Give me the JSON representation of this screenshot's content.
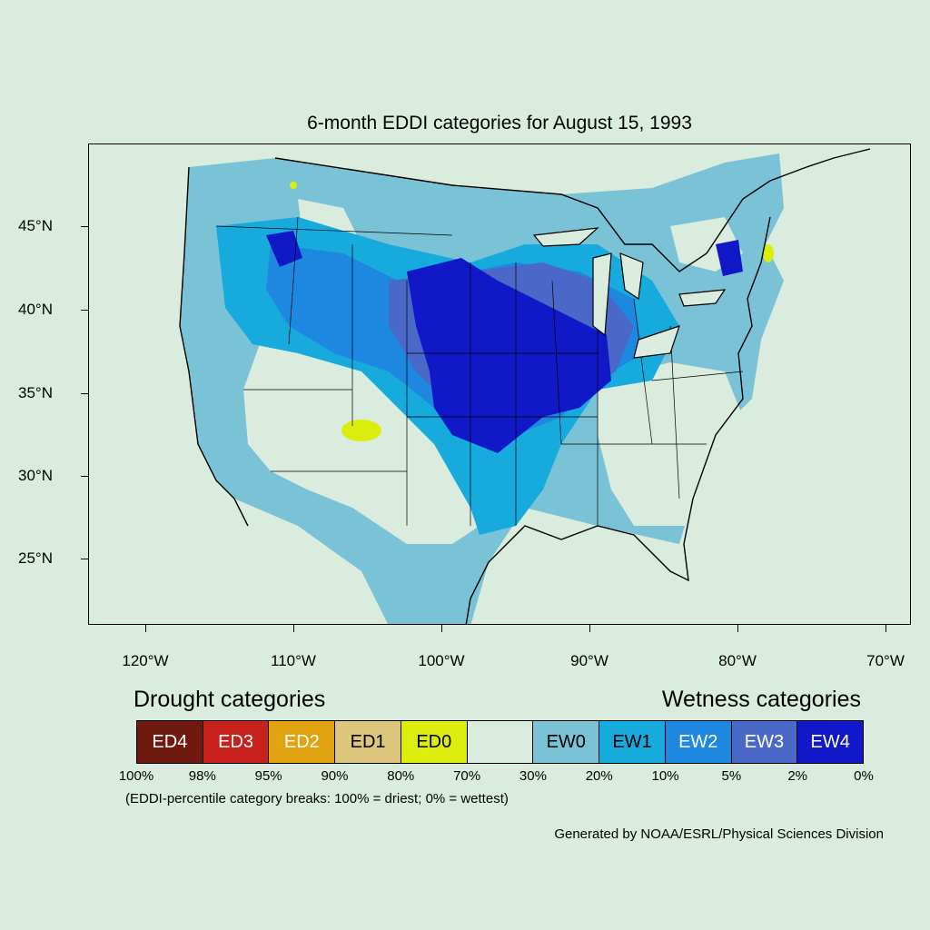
{
  "title": "6-month EDDI categories for August 15, 1993",
  "map": {
    "lat_labels": [
      "45°N",
      "40°N",
      "35°N",
      "30°N",
      "25°N"
    ],
    "lon_labels": [
      "120°W",
      "110°W",
      "100°W",
      "90°W",
      "80°W",
      "70°W"
    ]
  },
  "legend": {
    "drought_heading": "Drought categories",
    "wetness_heading": "Wetness categories",
    "categories": [
      {
        "label": "ED4",
        "color": "#6e1a0f",
        "text_color": "#ffffff"
      },
      {
        "label": "ED3",
        "color": "#c8201a",
        "text_color": "#ffffff"
      },
      {
        "label": "ED2",
        "color": "#e0a20e",
        "text_color": "#ffffff"
      },
      {
        "label": "ED1",
        "color": "#dcc67c",
        "text_color": "#000000"
      },
      {
        "label": "ED0",
        "color": "#dcec0c",
        "text_color": "#000000"
      },
      {
        "label": "",
        "color": "#d9ecdd",
        "text_color": "#000000"
      },
      {
        "label": "EW0",
        "color": "#7ac2d6",
        "text_color": "#000000"
      },
      {
        "label": "EW1",
        "color": "#16aadd",
        "text_color": "#000000"
      },
      {
        "label": "EW2",
        "color": "#1e88e0",
        "text_color": "#ffffff"
      },
      {
        "label": "EW3",
        "color": "#4a68c8",
        "text_color": "#ffffff"
      },
      {
        "label": "EW4",
        "color": "#1018c8",
        "text_color": "#ffffff"
      }
    ],
    "breaks": [
      "100%",
      "98%",
      "95%",
      "90%",
      "80%",
      "70%",
      "30%",
      "20%",
      "10%",
      "5%",
      "2%",
      "0%"
    ],
    "note": "(EDDI-percentile category breaks: 100% = driest; 0% = wettest)"
  },
  "credit": "Generated by NOAA/ESRL/Physical Sciences Division"
}
